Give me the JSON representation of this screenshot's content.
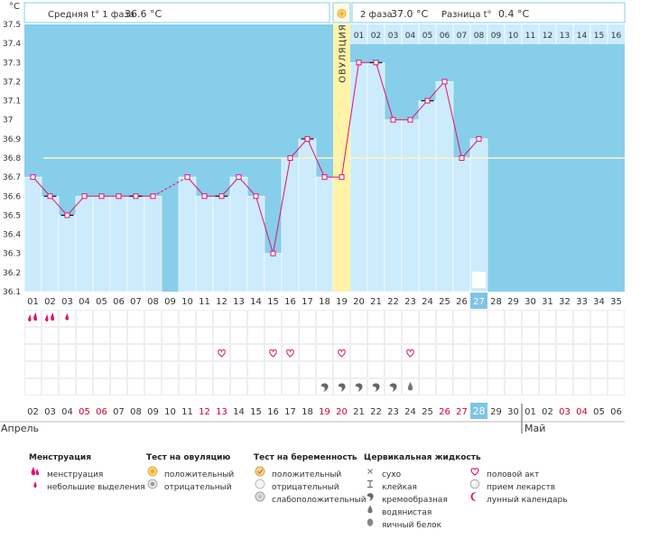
{
  "header": {
    "unit": "°C",
    "phase1_label": "Средняя t° 1 фаза",
    "phase1_value": "36.6 °C",
    "phase2_label": "2 фаза",
    "phase2_value": "37.0 °C",
    "diff_label": "Разница t°",
    "diff_value": "0.4 °C"
  },
  "ovulation_label": "ОВУЛЯЦИЯ",
  "phase2_day_labels": [
    "01",
    "02",
    "03",
    "04",
    "05",
    "06",
    "07",
    "08",
    "09",
    "10",
    "11",
    "12",
    "13",
    "14",
    "15",
    "16"
  ],
  "colors": {
    "background_blue": "#87CEEB",
    "bar_fill": "#CCEBFC",
    "line": "#E0116F",
    "ovulation": "#FFF3A8",
    "average_line": "#FFF3C4",
    "weekend_red": "#CC0033",
    "today": "#7FC4E6"
  },
  "chart_data": {
    "type": "line",
    "ylabel": "°C",
    "ylim": [
      36.1,
      37.5
    ],
    "yticks": [
      "37.5",
      "37.4",
      "37.3",
      "37.2",
      "37.1",
      "37",
      "36.9",
      "36.8",
      "36.7",
      "36.6",
      "36.5",
      "36.4",
      "36.3",
      "36.2",
      "36.1"
    ],
    "cycle_days": [
      "01",
      "02",
      "03",
      "04",
      "05",
      "06",
      "07",
      "08",
      "09",
      "10",
      "11",
      "12",
      "13",
      "14",
      "15",
      "16",
      "17",
      "18",
      "19",
      "20",
      "21",
      "22",
      "23",
      "24",
      "25",
      "26",
      "27",
      "28",
      "29",
      "30",
      "31",
      "32",
      "33",
      "34",
      "35"
    ],
    "temperatures": [
      36.7,
      36.6,
      36.5,
      36.6,
      36.6,
      36.6,
      36.6,
      36.6,
      null,
      36.7,
      36.6,
      36.6,
      36.7,
      36.6,
      36.3,
      36.8,
      36.9,
      36.7,
      36.7,
      37.3,
      37.3,
      37.0,
      37.0,
      37.1,
      37.2,
      36.8,
      36.9,
      null,
      null,
      null,
      null,
      null,
      null,
      null,
      null
    ],
    "average_temperature": 36.8,
    "ovulation_day": "19",
    "today_cycle_day": "27",
    "dates": [
      "02",
      "03",
      "04",
      "05",
      "06",
      "07",
      "08",
      "09",
      "10",
      "11",
      "12",
      "13",
      "14",
      "15",
      "16",
      "17",
      "18",
      "19",
      "20",
      "21",
      "22",
      "23",
      "24",
      "25",
      "26",
      "27",
      "28",
      "29",
      "30",
      "01",
      "02",
      "03",
      "04",
      "05",
      "06"
    ],
    "weekend_dates_by_index": [
      3,
      4,
      10,
      11,
      17,
      18,
      24,
      25,
      31,
      32
    ],
    "month_start": "Апрель",
    "month_next": "Май",
    "markers": {
      "menstruation_heavy_days": [
        "01",
        "02"
      ],
      "menstruation_light_days": [
        "03"
      ],
      "sex_days": [
        "12",
        "15",
        "16",
        "19",
        "23"
      ],
      "creamy_fluid_days": [
        "18",
        "19",
        "20",
        "21",
        "22"
      ],
      "watery_fluid_days": [
        "23"
      ],
      "lunar_calendar_day": "27"
    }
  },
  "legend": {
    "menstruation": {
      "title": "Менструация",
      "items": [
        {
          "icon": "menstruation-icon",
          "label": "менструация"
        },
        {
          "icon": "spotting-icon",
          "label": "небольшие выделения"
        }
      ]
    },
    "ovulation_test": {
      "title": "Тест на овуляцию",
      "items": [
        {
          "icon": "positive-ovulation-test-icon",
          "label": "положительный"
        },
        {
          "icon": "negative-ovulation-test-icon",
          "label": "отрицательный"
        }
      ]
    },
    "pregnancy_test": {
      "title": "Тест на беременность",
      "items": [
        {
          "icon": "positive-pregnancy-test-icon",
          "label": "положительный"
        },
        {
          "icon": "negative-pregnancy-test-icon",
          "label": "отрицательный"
        },
        {
          "icon": "weak-positive-pregnancy-test-icon",
          "label": "слабоположительный"
        }
      ]
    },
    "cervical_fluid": {
      "title": "Цервикальная жидкость",
      "items": [
        {
          "icon": "dry-icon",
          "label": "сухо"
        },
        {
          "icon": "sticky-icon",
          "label": "клейкая"
        },
        {
          "icon": "creamy-icon",
          "label": "кремообразная"
        },
        {
          "icon": "watery-icon",
          "label": "водянистая"
        },
        {
          "icon": "egg-white-icon",
          "label": "яичный белок"
        }
      ]
    },
    "other": {
      "items": [
        {
          "icon": "heart-icon",
          "label": "половой акт"
        },
        {
          "icon": "medicine-icon",
          "label": "прием лекарств"
        },
        {
          "icon": "moon-icon",
          "label": "лунный календарь"
        }
      ]
    }
  }
}
